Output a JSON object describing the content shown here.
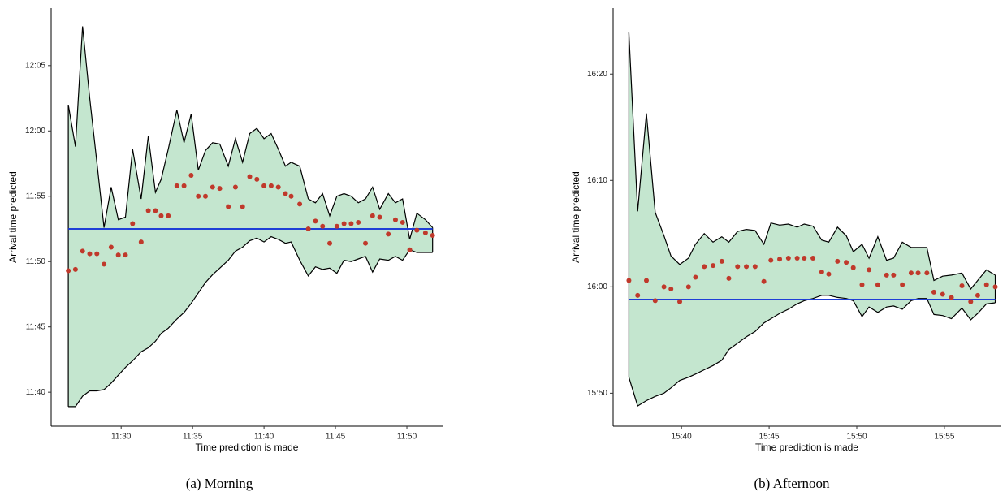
{
  "chart_data": [
    {
      "type": "band",
      "caption": "(a) Morning",
      "xlabel": "Time prediction is made",
      "ylabel": "Arrival time predicted",
      "xlim": [
        685.1,
        712.5
      ],
      "ylim": [
        697.4,
        729.4
      ],
      "xticks": [
        {
          "value": 690,
          "label": "11:30"
        },
        {
          "value": 695,
          "label": "11:35"
        },
        {
          "value": 700,
          "label": "11:40"
        },
        {
          "value": 705,
          "label": "11:45"
        },
        {
          "value": 710,
          "label": "11:50"
        }
      ],
      "yticks": [
        {
          "value": 700,
          "label": "11:40"
        },
        {
          "value": 705,
          "label": "11:45"
        },
        {
          "value": 710,
          "label": "11:50"
        },
        {
          "value": 715,
          "label": "11:55"
        },
        {
          "value": 720,
          "label": "12:00"
        },
        {
          "value": 725,
          "label": "12:05"
        }
      ],
      "x": [
        686.3,
        686.8,
        687.3,
        687.8,
        688.3,
        688.8,
        689.3,
        689.8,
        690.3,
        690.8,
        691.4,
        691.9,
        692.4,
        692.8,
        693.3,
        693.9,
        694.4,
        694.9,
        695.4,
        695.9,
        696.4,
        696.9,
        697.5,
        698.0,
        698.5,
        699.0,
        699.5,
        700.0,
        700.5,
        701.0,
        701.5,
        701.9,
        702.5,
        703.1,
        703.6,
        704.1,
        704.6,
        705.1,
        705.6,
        706.1,
        706.6,
        707.1,
        707.6,
        708.1,
        708.7,
        709.2,
        709.7,
        710.2,
        710.7,
        711.3,
        711.8
      ],
      "upper": [
        722.0,
        718.8,
        728.0,
        722.5,
        717.6,
        712.6,
        715.7,
        713.2,
        713.4,
        718.6,
        714.8,
        719.6,
        715.3,
        716.3,
        718.6,
        721.6,
        719.1,
        721.3,
        717.0,
        718.5,
        719.1,
        719.0,
        717.3,
        719.4,
        717.6,
        719.8,
        720.2,
        719.4,
        719.8,
        718.6,
        717.3,
        717.6,
        717.3,
        714.8,
        714.5,
        715.2,
        713.5,
        715.0,
        715.2,
        715.0,
        714.5,
        714.8,
        715.7,
        714.0,
        715.2,
        714.5,
        714.8,
        711.7,
        713.7,
        713.2,
        712.6
      ],
      "lower": [
        698.9,
        698.9,
        699.7,
        700.1,
        700.1,
        700.2,
        700.7,
        701.3,
        701.9,
        702.4,
        703.1,
        703.4,
        703.9,
        704.5,
        704.9,
        705.6,
        706.1,
        706.8,
        707.6,
        708.4,
        709.0,
        709.5,
        710.1,
        710.8,
        711.1,
        711.6,
        711.8,
        711.5,
        711.9,
        711.7,
        711.4,
        711.5,
        710.1,
        708.9,
        709.6,
        709.4,
        709.5,
        709.1,
        710.1,
        710.0,
        710.2,
        710.4,
        709.2,
        710.2,
        710.1,
        710.4,
        710.1,
        710.9,
        710.7,
        710.7,
        710.7
      ],
      "points": [
        709.3,
        709.4,
        710.8,
        710.6,
        710.6,
        709.8,
        711.1,
        710.5,
        710.5,
        712.9,
        711.5,
        713.9,
        713.9,
        713.5,
        713.5,
        715.8,
        715.8,
        716.6,
        715.0,
        715.0,
        715.7,
        715.6,
        714.2,
        715.7,
        714.2,
        716.5,
        716.3,
        715.8,
        715.8,
        715.7,
        715.2,
        715.0,
        714.4,
        712.5,
        713.1,
        712.7,
        711.4,
        712.7,
        712.9,
        712.9,
        713.0,
        711.4,
        713.5,
        713.4,
        712.1,
        713.2,
        713.0,
        710.9,
        712.4,
        712.2,
        712.0
      ],
      "hline": 712.5,
      "band_color": "#c4e6cf",
      "point_color": "#c0392b",
      "hline_color": "#1f3fd6"
    },
    {
      "type": "band",
      "caption": "(b) Afternoon",
      "xlabel": "Time prediction is made",
      "ylabel": "Arrival time predicted",
      "xlim": [
        936.1,
        958.2
      ],
      "ylim": [
        946.9,
        986.2
      ],
      "xticks": [
        {
          "value": 940,
          "label": "15:40"
        },
        {
          "value": 945,
          "label": "15:45"
        },
        {
          "value": 950,
          "label": "15:50"
        },
        {
          "value": 955,
          "label": "15:55"
        }
      ],
      "yticks": [
        {
          "value": 950,
          "label": "15:50"
        },
        {
          "value": 960,
          "label": "16:00"
        },
        {
          "value": 970,
          "label": "16:10"
        },
        {
          "value": 980,
          "label": "16:20"
        }
      ],
      "x": [
        937.0,
        937.5,
        938.0,
        938.5,
        939.0,
        939.4,
        939.9,
        940.4,
        940.8,
        941.3,
        941.8,
        942.3,
        942.7,
        943.2,
        943.7,
        944.2,
        944.7,
        945.1,
        945.6,
        946.1,
        946.6,
        947.0,
        947.5,
        948.0,
        948.4,
        948.9,
        949.4,
        949.8,
        950.3,
        950.7,
        951.2,
        951.7,
        952.1,
        952.6,
        953.1,
        953.5,
        954.0,
        954.4,
        954.9,
        955.4,
        956.0,
        956.5,
        956.9,
        957.4,
        957.9
      ],
      "upper": [
        983.9,
        967.1,
        976.3,
        967.0,
        964.8,
        962.9,
        962.1,
        962.7,
        964.0,
        965.0,
        964.2,
        964.7,
        964.2,
        965.2,
        965.4,
        965.3,
        964.0,
        966.0,
        965.8,
        965.9,
        965.6,
        965.9,
        965.7,
        964.4,
        964.2,
        965.6,
        964.8,
        963.3,
        964.0,
        962.7,
        964.7,
        962.5,
        962.7,
        964.2,
        963.7,
        963.7,
        963.7,
        960.6,
        961.0,
        961.1,
        961.3,
        959.8,
        960.6,
        961.6,
        961.1
      ],
      "lower": [
        951.5,
        948.8,
        949.3,
        949.7,
        950.0,
        950.5,
        951.2,
        951.5,
        951.8,
        952.2,
        952.6,
        953.1,
        954.1,
        954.7,
        955.3,
        955.8,
        956.6,
        957.0,
        957.5,
        957.9,
        958.4,
        958.7,
        958.9,
        959.2,
        959.2,
        959.0,
        958.9,
        958.7,
        957.2,
        958.1,
        957.6,
        958.1,
        958.2,
        957.9,
        958.7,
        958.9,
        958.9,
        957.4,
        957.3,
        957.0,
        958.0,
        956.9,
        957.5,
        958.4,
        958.5
      ],
      "points": [
        960.6,
        959.2,
        960.6,
        958.7,
        960.0,
        959.8,
        958.6,
        960.0,
        960.9,
        961.9,
        962.0,
        962.4,
        960.8,
        961.9,
        961.9,
        961.9,
        960.5,
        962.5,
        962.6,
        962.7,
        962.7,
        962.7,
        962.7,
        961.4,
        961.2,
        962.4,
        962.3,
        961.8,
        960.2,
        961.6,
        960.2,
        961.1,
        961.1,
        960.2,
        961.3,
        961.3,
        961.3,
        959.5,
        959.3,
        959.0,
        960.1,
        958.6,
        959.2,
        960.2,
        960.0
      ],
      "hline": 958.8,
      "band_color": "#c4e6cf",
      "point_color": "#c0392b",
      "hline_color": "#1f3fd6"
    }
  ]
}
